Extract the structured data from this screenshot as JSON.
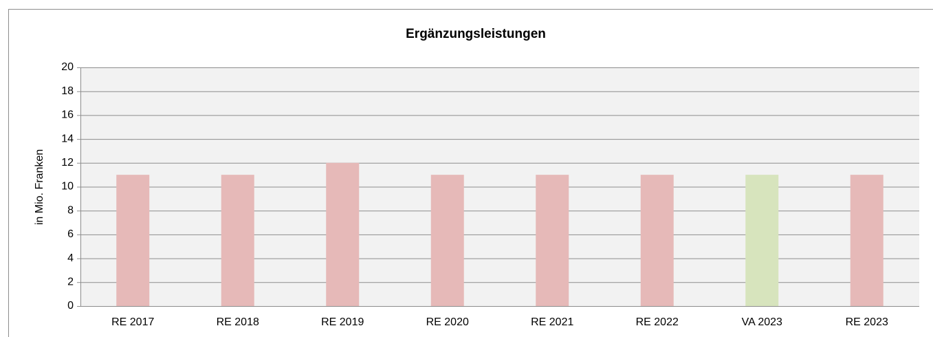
{
  "chart_data": {
    "type": "bar",
    "title": "Ergänzungsleistungen",
    "y_label": "in Mio. Franken",
    "categories": [
      "RE 2017",
      "RE 2018",
      "RE 2019",
      "RE 2020",
      "RE 2021",
      "RE 2022",
      "VA 2023",
      "RE 2023"
    ],
    "values": [
      11,
      11,
      12,
      11,
      11,
      11,
      11,
      11
    ],
    "colors": [
      "#e6b9b8",
      "#e6b9b8",
      "#e6b9b8",
      "#e6b9b8",
      "#e6b9b8",
      "#e6b9b8",
      "#d7e4bd",
      "#e6b9b8"
    ],
    "ylim": [
      0,
      20
    ],
    "yticks": [
      0,
      2,
      4,
      6,
      8,
      10,
      12,
      14,
      16,
      18,
      20
    ],
    "grid": true
  }
}
